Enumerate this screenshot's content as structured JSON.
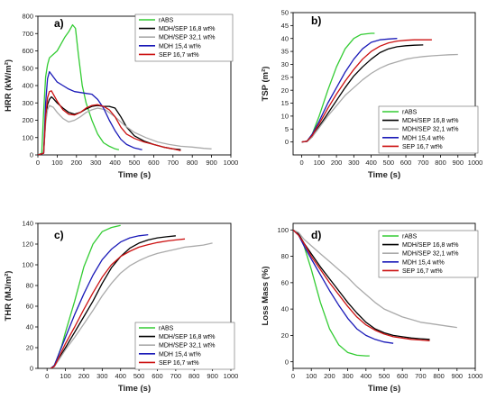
{
  "chart_data": [
    {
      "type": "line",
      "panel_label": "a)",
      "xlabel": "Time (s)",
      "ylabel": "HRR (kW/m²)",
      "xlim": [
        0,
        1000
      ],
      "ylim": [
        0,
        800
      ],
      "xticks": [
        0,
        100,
        200,
        300,
        400,
        500,
        600,
        700,
        800,
        900,
        1000
      ],
      "yticks": [
        0,
        100,
        200,
        300,
        400,
        500,
        600,
        700,
        800
      ],
      "legend_position": "top-right",
      "series": [
        {
          "name": "rABS",
          "color": "#33cc33",
          "x": [
            0,
            20,
            30,
            40,
            50,
            60,
            80,
            100,
            120,
            140,
            160,
            180,
            195,
            210,
            230,
            250,
            280,
            310,
            340,
            370,
            400,
            420
          ],
          "y": [
            0,
            10,
            250,
            450,
            520,
            560,
            580,
            600,
            640,
            680,
            710,
            750,
            730,
            580,
            400,
            300,
            200,
            120,
            70,
            50,
            35,
            30
          ]
        },
        {
          "name": "MDH/SEP 16,8 wt%",
          "color": "#000000",
          "x": [
            0,
            30,
            40,
            50,
            60,
            70,
            80,
            100,
            130,
            160,
            190,
            220,
            250,
            280,
            310,
            340,
            370,
            400,
            430,
            460,
            500,
            550,
            600,
            650,
            700,
            740
          ],
          "y": [
            0,
            10,
            200,
            290,
            320,
            335,
            325,
            300,
            270,
            245,
            235,
            245,
            265,
            280,
            285,
            280,
            280,
            270,
            220,
            160,
            110,
            80,
            60,
            45,
            35,
            30
          ]
        },
        {
          "name": "MDH/SEP 32,1 wt%",
          "color": "#aaaaaa",
          "x": [
            0,
            30,
            40,
            50,
            60,
            80,
            100,
            130,
            160,
            190,
            220,
            250,
            280,
            310,
            350,
            400,
            450,
            500,
            560,
            620,
            680,
            740,
            800,
            860,
            900
          ],
          "y": [
            0,
            10,
            180,
            260,
            285,
            275,
            245,
            210,
            190,
            200,
            220,
            245,
            260,
            270,
            260,
            220,
            170,
            130,
            100,
            75,
            60,
            50,
            45,
            38,
            35
          ]
        },
        {
          "name": "MDH 15,4 wt%",
          "color": "#1a1ab8",
          "x": [
            0,
            30,
            40,
            50,
            60,
            70,
            80,
            100,
            130,
            160,
            190,
            220,
            250,
            280,
            310,
            340,
            370,
            400,
            430,
            460,
            500,
            540
          ],
          "y": [
            0,
            10,
            300,
            440,
            480,
            465,
            450,
            420,
            400,
            380,
            365,
            360,
            355,
            350,
            320,
            270,
            200,
            140,
            90,
            60,
            40,
            30
          ]
        },
        {
          "name": "SEP 16,7 wt%",
          "color": "#cc1111",
          "x": [
            0,
            30,
            40,
            50,
            60,
            70,
            80,
            100,
            130,
            160,
            190,
            220,
            250,
            280,
            310,
            340,
            370,
            400,
            430,
            460,
            500,
            550,
            600,
            650,
            700,
            740
          ],
          "y": [
            0,
            10,
            220,
            330,
            365,
            370,
            350,
            310,
            260,
            235,
            230,
            245,
            270,
            285,
            290,
            280,
            260,
            220,
            160,
            120,
            95,
            75,
            60,
            45,
            35,
            25
          ]
        }
      ]
    },
    {
      "type": "line",
      "panel_label": "b)",
      "xlabel": "Time (s)",
      "ylabel": "TSP (m²)",
      "xlim": [
        -50,
        1000
      ],
      "ylim": [
        -5,
        50
      ],
      "xticks": [
        0,
        100,
        200,
        300,
        400,
        500,
        600,
        700,
        800,
        900,
        1000
      ],
      "yticks": [
        0,
        5,
        10,
        15,
        20,
        25,
        30,
        35,
        40,
        45,
        50
      ],
      "legend_position": "bottom-right",
      "series": [
        {
          "name": "rABS",
          "color": "#33cc33",
          "x": [
            0,
            30,
            60,
            100,
            150,
            200,
            250,
            300,
            340,
            370,
            400,
            420
          ],
          "y": [
            0,
            0.3,
            3,
            10,
            20,
            29,
            36,
            40,
            41.5,
            41.8,
            42,
            42
          ]
        },
        {
          "name": "MDH/SEP 16,8 wt%",
          "color": "#000000",
          "x": [
            0,
            30,
            60,
            100,
            150,
            200,
            250,
            300,
            350,
            400,
            450,
            500,
            550,
            600,
            650,
            700
          ],
          "y": [
            0,
            0.2,
            2,
            6,
            11,
            16,
            21,
            25.5,
            29,
            32,
            34.5,
            36,
            36.8,
            37.2,
            37.4,
            37.5
          ]
        },
        {
          "name": "MDH/SEP 32,1 wt%",
          "color": "#aaaaaa",
          "x": [
            0,
            30,
            60,
            100,
            150,
            200,
            250,
            300,
            350,
            400,
            450,
            500,
            550,
            600,
            650,
            700,
            750,
            800,
            850,
            900
          ],
          "y": [
            0,
            0.2,
            2,
            5.5,
            10,
            14,
            18,
            21,
            24,
            26.5,
            28.5,
            30,
            31,
            32,
            32.6,
            33,
            33.3,
            33.5,
            33.7,
            33.8
          ]
        },
        {
          "name": "MDH 15,4 wt%",
          "color": "#1a1ab8",
          "x": [
            0,
            30,
            60,
            100,
            150,
            200,
            250,
            300,
            350,
            400,
            450,
            500,
            550
          ],
          "y": [
            0,
            0.3,
            3,
            8,
            15,
            21,
            27,
            32,
            36,
            38.5,
            39.5,
            39.8,
            40
          ]
        },
        {
          "name": "SEP 16,7 wt%",
          "color": "#cc1111",
          "x": [
            0,
            30,
            60,
            100,
            150,
            200,
            250,
            300,
            350,
            400,
            450,
            500,
            550,
            600,
            650,
            700,
            750
          ],
          "y": [
            0,
            0.3,
            2.5,
            7,
            13,
            18.5,
            23.5,
            28,
            32,
            35,
            37,
            38.3,
            39,
            39.3,
            39.5,
            39.5,
            39.5
          ]
        }
      ]
    },
    {
      "type": "line",
      "panel_label": "c)",
      "xlabel": "Time (s)",
      "ylabel": "THR (MJ/m²)",
      "xlim": [
        -50,
        1000
      ],
      "ylim": [
        0,
        140
      ],
      "xticks": [
        0,
        100,
        200,
        300,
        400,
        500,
        600,
        700,
        800,
        900,
        1000
      ],
      "yticks": [
        0,
        20,
        40,
        60,
        80,
        100,
        120,
        140
      ],
      "legend_position": "bottom-right",
      "series": [
        {
          "name": "rABS",
          "color": "#33cc33",
          "x": [
            20,
            40,
            60,
            80,
            100,
            150,
            200,
            250,
            300,
            350,
            400
          ],
          "y": [
            0,
            3,
            12,
            22,
            35,
            65,
            98,
            120,
            132,
            136,
            138
          ]
        },
        {
          "name": "MDH/SEP 16,8 wt%",
          "color": "#000000",
          "x": [
            20,
            40,
            60,
            100,
            150,
            200,
            250,
            300,
            350,
            400,
            450,
            500,
            550,
            600,
            650,
            700
          ],
          "y": [
            0,
            2,
            8,
            20,
            35,
            50,
            65,
            82,
            97,
            108,
            116,
            121,
            124,
            126,
            127,
            128
          ]
        },
        {
          "name": "MDH/SEP 32,1 wt%",
          "color": "#aaaaaa",
          "x": [
            20,
            40,
            60,
            100,
            150,
            200,
            250,
            300,
            350,
            400,
            450,
            500,
            550,
            600,
            650,
            700,
            750,
            800,
            850,
            900
          ],
          "y": [
            0,
            2,
            7,
            18,
            30,
            43,
            56,
            70,
            82,
            92,
            99,
            104,
            108,
            111,
            113,
            115,
            117,
            118,
            119,
            121
          ]
        },
        {
          "name": "MDH 15,4 wt%",
          "color": "#1a1ab8",
          "x": [
            20,
            40,
            60,
            100,
            150,
            200,
            250,
            300,
            350,
            400,
            450,
            500,
            550
          ],
          "y": [
            0,
            3,
            12,
            30,
            52,
            72,
            90,
            105,
            115,
            122,
            126,
            128,
            129
          ]
        },
        {
          "name": "SEP 16,7 wt%",
          "color": "#cc1111",
          "x": [
            20,
            40,
            60,
            100,
            150,
            200,
            250,
            300,
            350,
            400,
            450,
            500,
            550,
            600,
            650,
            700,
            750
          ],
          "y": [
            0,
            2,
            9,
            24,
            40,
            57,
            73,
            88,
            100,
            108,
            113,
            117,
            119.5,
            121.5,
            123,
            124,
            125
          ]
        }
      ]
    },
    {
      "type": "line",
      "panel_label": "d)",
      "xlabel": "Time (s)",
      "ylabel": "Loss Mass (%)",
      "xlim": [
        0,
        1000
      ],
      "ylim": [
        -5,
        105
      ],
      "xticks": [
        0,
        100,
        200,
        300,
        400,
        500,
        600,
        700,
        800,
        900,
        1000
      ],
      "yticks": [
        0,
        20,
        40,
        60,
        80,
        100
      ],
      "legend_position": "top-right",
      "series": [
        {
          "name": "rABS",
          "color": "#33cc33",
          "x": [
            0,
            30,
            60,
            100,
            150,
            200,
            250,
            300,
            350,
            400,
            420
          ],
          "y": [
            100,
            97,
            88,
            70,
            45,
            25,
            13,
            7,
            5,
            4.5,
            4.5
          ]
        },
        {
          "name": "MDH/SEP 16,8 wt%",
          "color": "#000000",
          "x": [
            0,
            30,
            60,
            100,
            150,
            200,
            250,
            300,
            350,
            400,
            450,
            500,
            550,
            600,
            650,
            700,
            750
          ],
          "y": [
            100,
            97,
            90,
            82,
            72,
            63,
            54,
            45,
            37,
            30,
            25,
            22,
            20,
            19,
            18,
            17.5,
            17
          ]
        },
        {
          "name": "MDH/SEP 32,1 wt%",
          "color": "#aaaaaa",
          "x": [
            0,
            30,
            60,
            100,
            150,
            200,
            250,
            300,
            350,
            400,
            450,
            500,
            550,
            600,
            650,
            700,
            750,
            800,
            850,
            900
          ],
          "y": [
            100,
            98,
            93,
            88,
            82,
            76,
            70,
            64,
            57,
            51,
            45,
            40,
            37,
            34,
            32,
            30,
            29,
            28,
            27,
            26
          ]
        },
        {
          "name": "MDH 15,4 wt%",
          "color": "#1a1ab8",
          "x": [
            0,
            30,
            60,
            100,
            150,
            200,
            250,
            300,
            350,
            400,
            450,
            500,
            550
          ],
          "y": [
            100,
            96,
            88,
            78,
            66,
            54,
            43,
            33,
            25,
            20,
            17,
            15,
            14
          ]
        },
        {
          "name": "SEP 16,7 wt%",
          "color": "#cc1111",
          "x": [
            0,
            30,
            60,
            100,
            150,
            200,
            250,
            300,
            350,
            400,
            450,
            500,
            550,
            600,
            650,
            700,
            750
          ],
          "y": [
            100,
            96,
            90,
            80,
            70,
            60,
            51,
            42,
            34,
            28,
            24,
            21,
            19,
            18,
            17,
            16.5,
            16
          ]
        }
      ]
    }
  ]
}
